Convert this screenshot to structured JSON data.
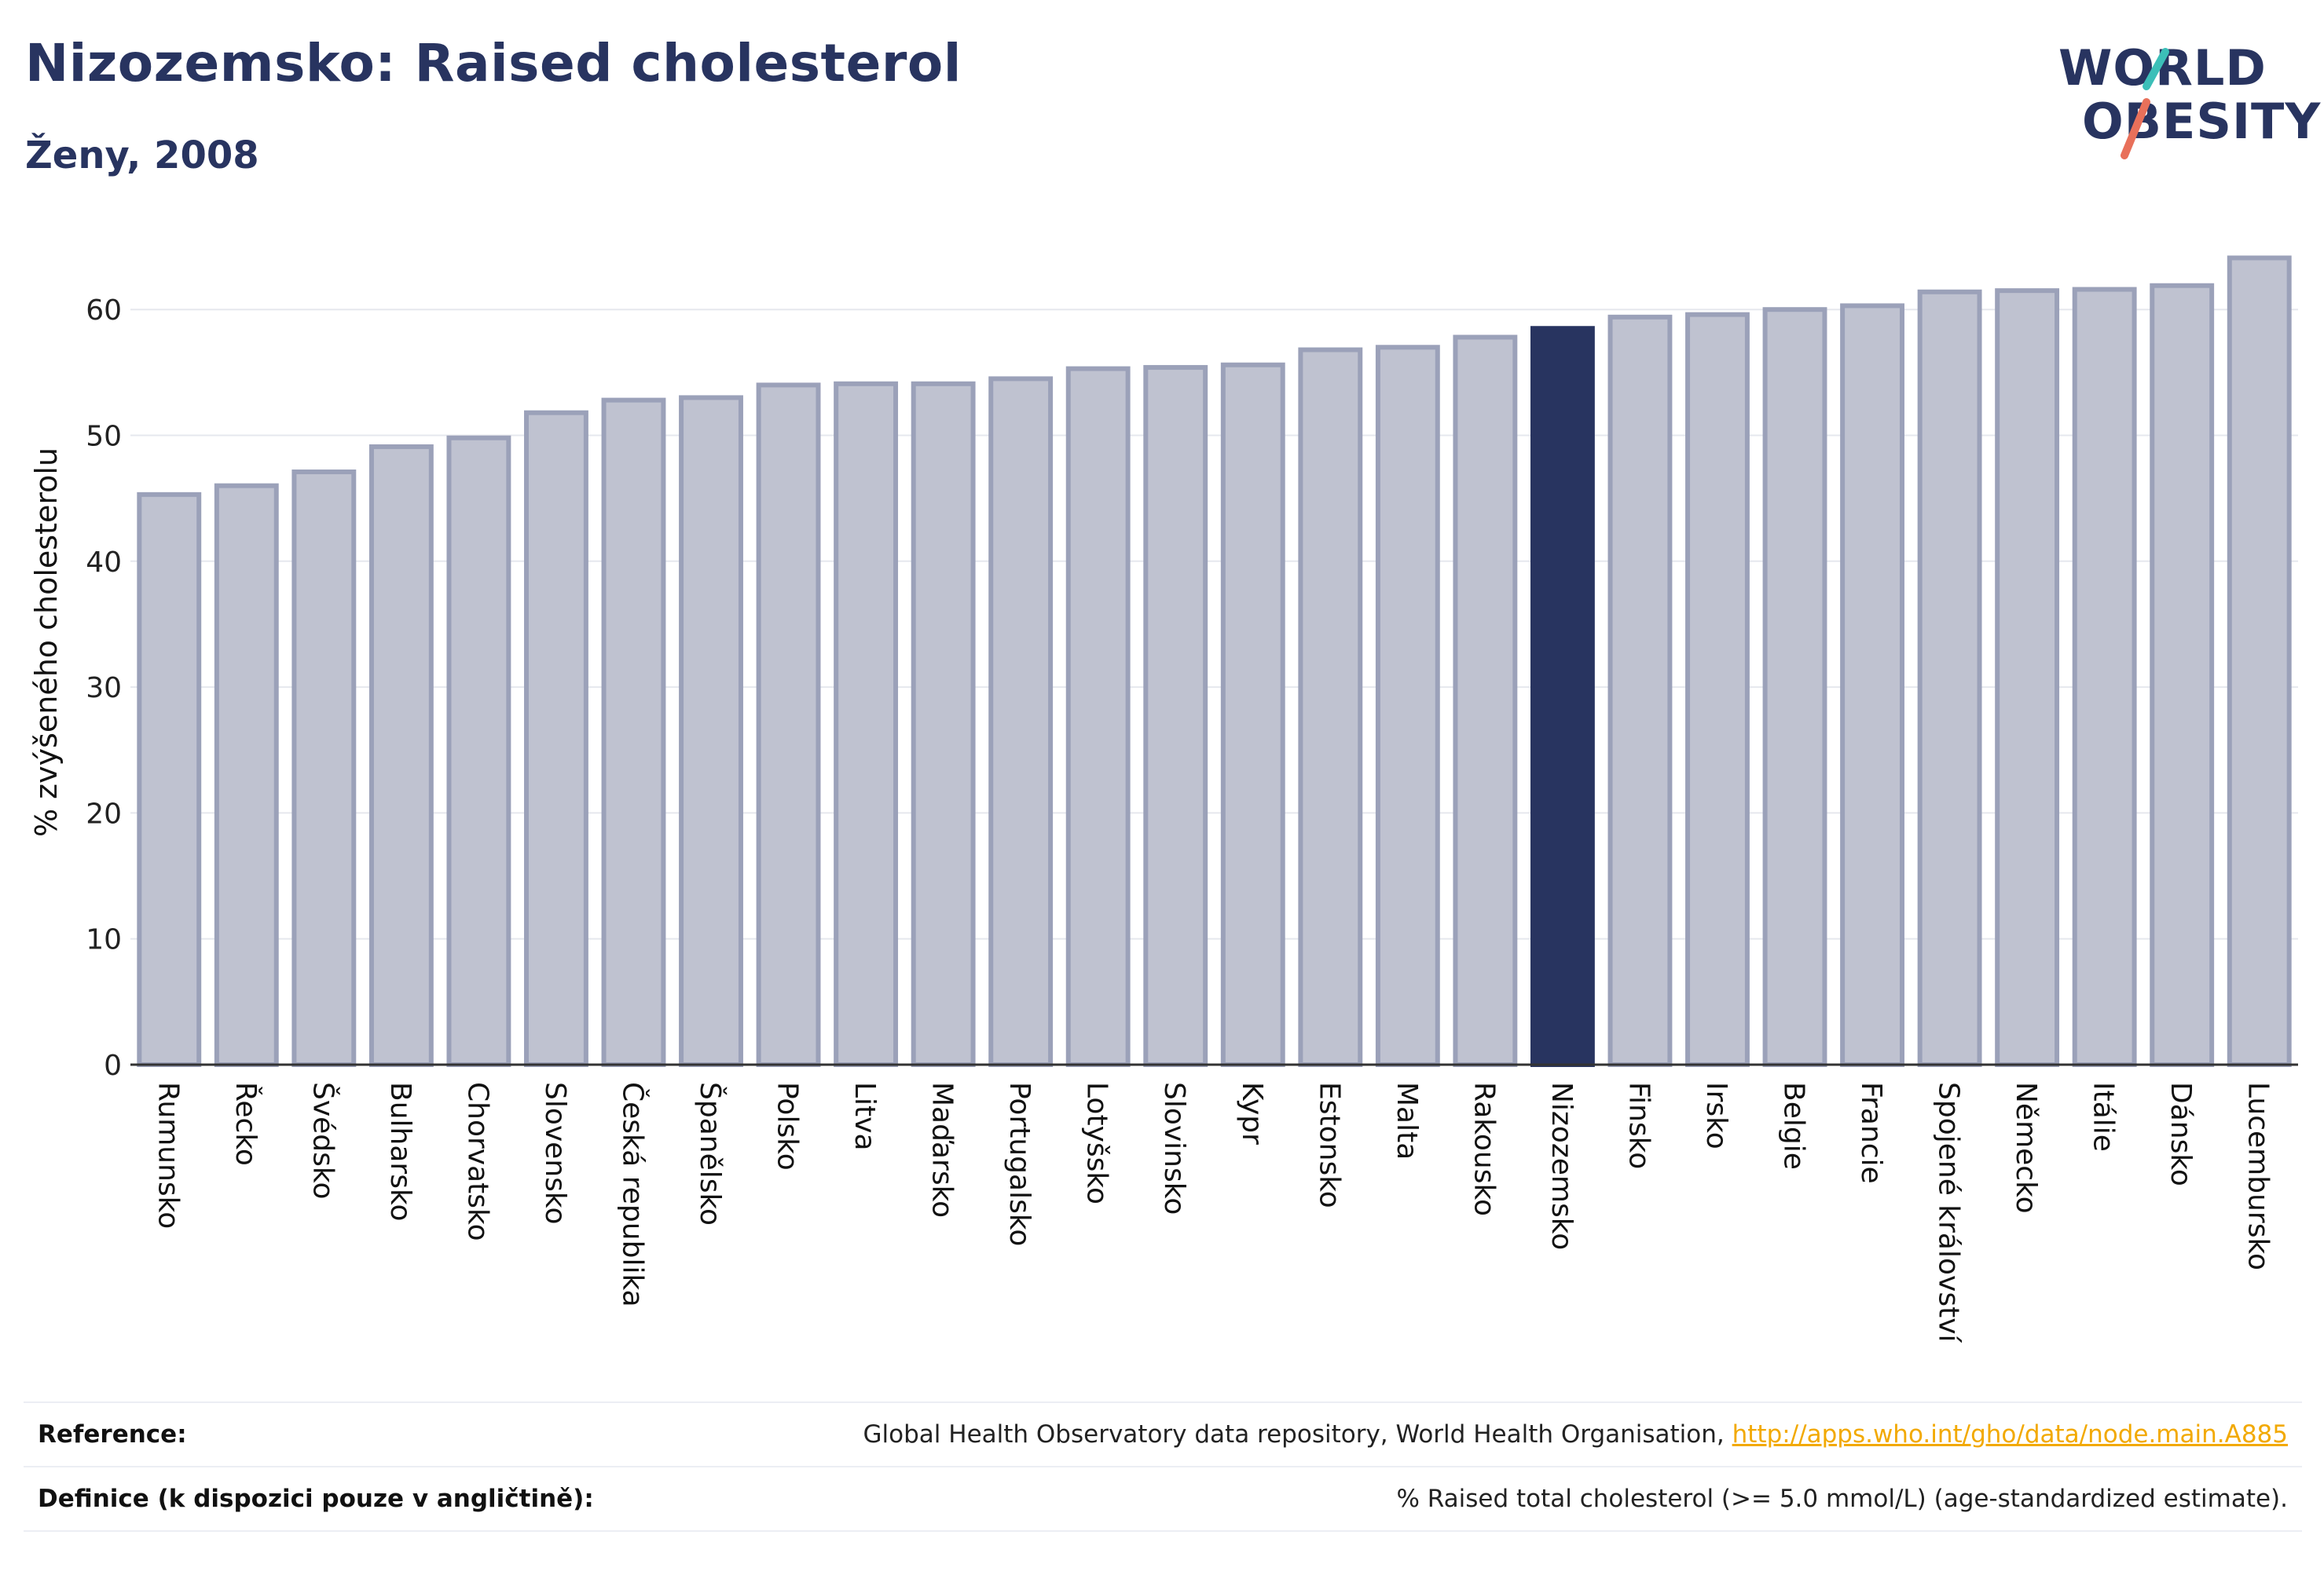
{
  "header": {
    "title": "Nizozemsko: Raised cholesterol",
    "subtitle": "Ženy, 2008"
  },
  "logo": {
    "line1": "WORLD",
    "line2": "OBESITY",
    "accent_colors": [
      "#3cbfb8",
      "#e8705a"
    ]
  },
  "colors": {
    "highlight": "#283460",
    "bar_fill": "#bfc2d0",
    "bar_stroke": "#9ba1b9",
    "grid": "#e6e8ee",
    "link": "#f2a900"
  },
  "chart_data": {
    "type": "bar",
    "ylabel": "% zvýšeného cholesterolu",
    "ylim": [
      0,
      65
    ],
    "yticks": [
      0,
      10,
      20,
      30,
      40,
      50,
      60
    ],
    "grid": true,
    "highlight_category": "Nizozemsko",
    "categories": [
      "Rumunsko",
      "Řecko",
      "Švédsko",
      "Bulharsko",
      "Chorvatsko",
      "Slovensko",
      "Česká republika",
      "Španělsko",
      "Polsko",
      "Litva",
      "Maďarsko",
      "Portugalsko",
      "Lotyšsko",
      "Slovinsko",
      "Kypr",
      "Estonsko",
      "Malta",
      "Rakousko",
      "Nizozemsko",
      "Finsko",
      "Irsko",
      "Belgie",
      "Francie",
      "Spojené království",
      "Německo",
      "Itálie",
      "Dánsko",
      "Lucembursko"
    ],
    "values": [
      45.3,
      46.0,
      47.1,
      49.1,
      49.8,
      51.8,
      52.8,
      53.0,
      54.0,
      54.1,
      54.1,
      54.5,
      55.3,
      55.4,
      55.6,
      56.8,
      57.0,
      57.8,
      58.5,
      59.4,
      59.6,
      60.0,
      60.3,
      61.4,
      61.5,
      61.6,
      61.9,
      64.1
    ]
  },
  "footer": {
    "reference_label": "Reference:",
    "reference_text": "Global Health Observatory data repository, World Health Organisation, ",
    "reference_link": "http://apps.who.int/gho/data/node.main.A885",
    "definition_label": "Definice (k dispozici pouze v angličtině):",
    "definition_text": "% Raised total cholesterol (>= 5.0 mmol/L) (age-standardized estimate)."
  }
}
